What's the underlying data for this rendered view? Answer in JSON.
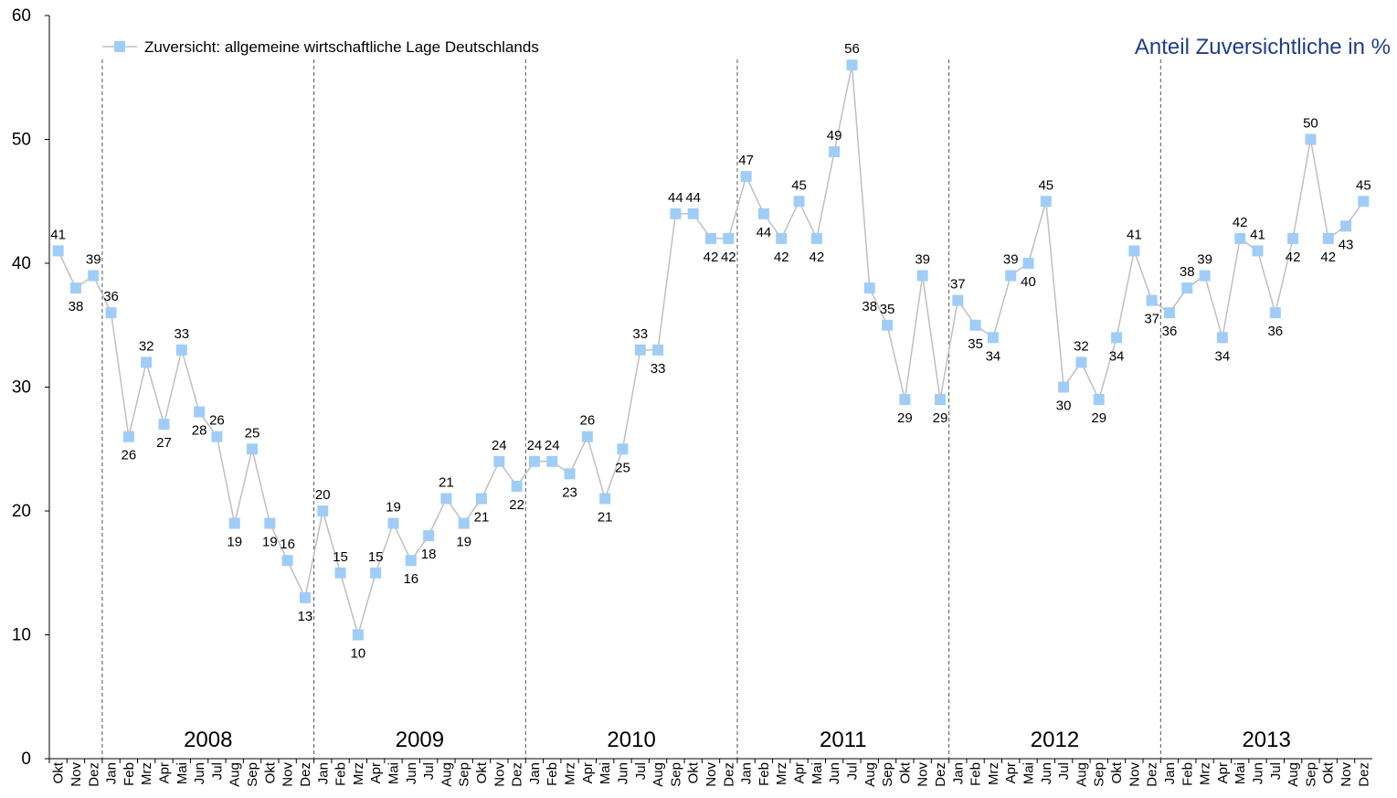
{
  "chart_data": {
    "type": "line",
    "subtitle": "Anteil Zuversichtliche in %",
    "categories": [
      "Okt",
      "Nov",
      "Dez",
      "Jan",
      "Feb",
      "Mrz",
      "Apr",
      "Mai",
      "Jun",
      "Jul",
      "Aug",
      "Sep",
      "Okt",
      "Nov",
      "Dez",
      "Jan",
      "Feb",
      "Mrz",
      "Apr",
      "Mai",
      "Jun",
      "Jul",
      "Aug",
      "Sep",
      "Okt",
      "Nov",
      "Dez",
      "Jan",
      "Feb",
      "Mrz",
      "Apr",
      "Mai",
      "Jun",
      "Jul",
      "Aug",
      "Sep",
      "Okt",
      "Nov",
      "Dez",
      "Jan",
      "Feb",
      "Mrz",
      "Apr",
      "Mai",
      "Jun",
      "Jul",
      "Aug",
      "Sep",
      "Okt",
      "Nov",
      "Dez",
      "Jan",
      "Feb",
      "Mrz",
      "Apr",
      "Mai",
      "Jun",
      "Jul",
      "Aug",
      "Sep",
      "Okt",
      "Nov",
      "Dez",
      "Jan",
      "Feb",
      "Mrz",
      "Apr",
      "Mai",
      "Jun",
      "Jul",
      "Aug",
      "Sep",
      "Okt",
      "Nov",
      "Dez"
    ],
    "year_labels": [
      "2008",
      "2009",
      "2010",
      "2011",
      "2012",
      "2013"
    ],
    "series": [
      {
        "name": "Zuversicht: allgemeine wirtschaftliche Lage Deutschlands",
        "color": "#9fcdf7",
        "line_color": "#bfbfbf",
        "values": [
          41,
          38,
          39,
          36,
          26,
          32,
          27,
          33,
          28,
          26,
          19,
          25,
          19,
          16,
          13,
          20,
          15,
          10,
          15,
          19,
          16,
          18,
          21,
          19,
          21,
          24,
          22,
          24,
          24,
          23,
          26,
          21,
          25,
          33,
          33,
          44,
          44,
          42,
          42,
          47,
          44,
          42,
          45,
          42,
          49,
          56,
          38,
          35,
          29,
          39,
          29,
          37,
          35,
          34,
          39,
          40,
          45,
          30,
          32,
          29,
          34,
          41,
          37,
          36,
          38,
          39,
          34,
          42,
          41,
          36,
          42,
          50,
          42,
          43,
          45
        ]
      }
    ],
    "ylim": [
      0,
      60
    ],
    "yticks": [
      0,
      10,
      20,
      30,
      40,
      50,
      60
    ],
    "legend": "top-left"
  }
}
